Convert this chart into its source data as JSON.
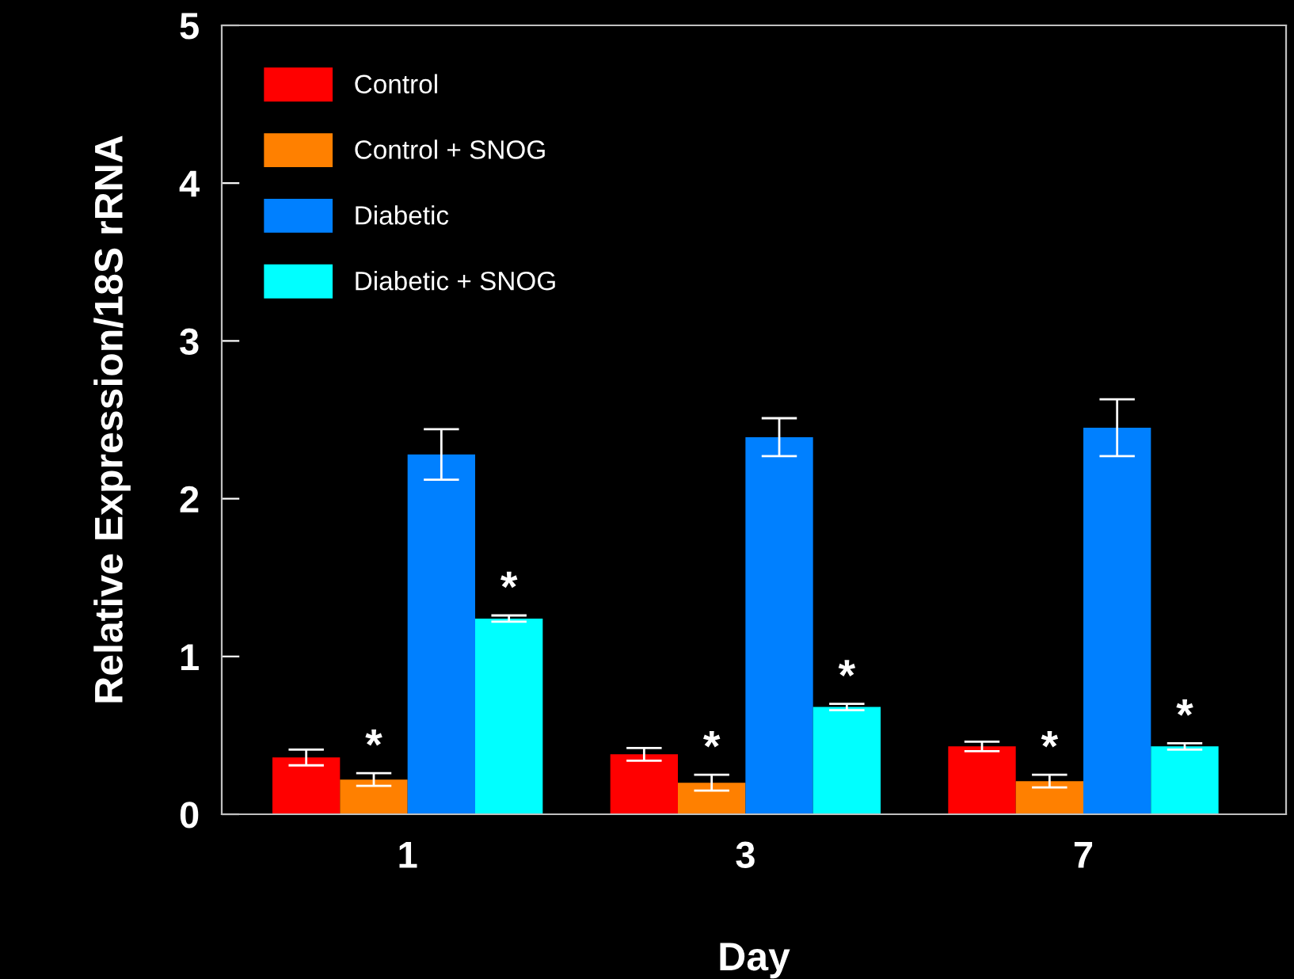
{
  "chart_data": {
    "type": "bar",
    "xlabel": "Day",
    "ylabel": "Relative Expression/18S rRNA",
    "categories": [
      "1",
      "3",
      "7"
    ],
    "series": [
      {
        "name": "Control",
        "color": "#ff0000",
        "values": [
          0.36,
          0.38,
          0.43
        ],
        "errors": [
          0.05,
          0.04,
          0.03
        ]
      },
      {
        "name": "Control + SNOG",
        "color": "#ff8000",
        "values": [
          0.22,
          0.2,
          0.21
        ],
        "errors": [
          0.04,
          0.05,
          0.04
        ],
        "value_labels": [
          "*",
          "*",
          "*"
        ]
      },
      {
        "name": "Diabetic",
        "color": "#0080ff",
        "values": [
          2.28,
          2.39,
          2.45
        ],
        "errors": [
          0.16,
          0.12,
          0.18
        ]
      },
      {
        "name": "Diabetic + SNOG",
        "color": "#00ffff",
        "values": [
          1.24,
          0.68,
          0.43
        ],
        "errors": [
          0.02,
          0.02,
          0.02
        ],
        "value_labels": [
          "*",
          "*",
          "*"
        ]
      }
    ],
    "ylim": [
      0,
      5
    ],
    "yticks": [
      0,
      1,
      2,
      3,
      4,
      5
    ],
    "grid": false,
    "legend": "top left"
  }
}
